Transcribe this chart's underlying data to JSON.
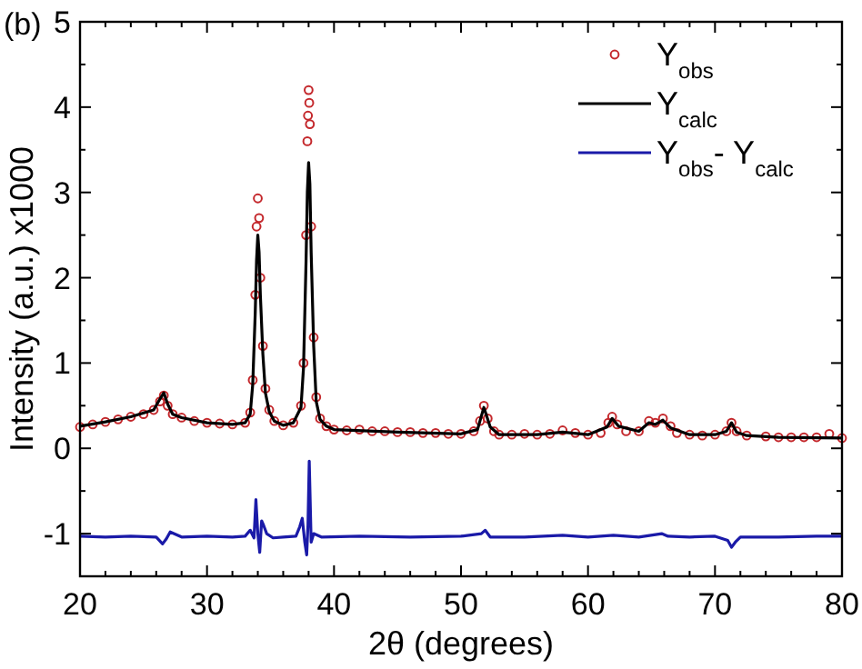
{
  "chart_data": {
    "type": "scatter",
    "xlabel": "2θ (degrees)",
    "ylabel": "Intensity (a.u.)   x1000",
    "annotations": [
      "(b)"
    ],
    "xlim": [
      20,
      80
    ],
    "ylim": [
      -1.5,
      5
    ],
    "xticks": [
      20,
      {
        "value": 22,
        "label": null
      },
      {
        "value": 24,
        "label": null
      },
      {
        "value": 26,
        "label": null
      },
      {
        "value": 28,
        "label": null
      },
      30,
      {
        "value": 32,
        "label": null
      },
      {
        "value": 34,
        "label": null
      },
      {
        "value": 36,
        "label": null
      },
      {
        "value": 38,
        "label": null
      },
      40,
      {
        "value": 42,
        "label": null
      },
      {
        "value": 44,
        "label": null
      },
      {
        "value": 46,
        "label": null
      },
      {
        "value": 48,
        "label": null
      },
      50,
      {
        "value": 52,
        "label": null
      },
      {
        "value": 54,
        "label": null
      },
      {
        "value": 56,
        "label": null
      },
      {
        "value": 58,
        "label": null
      },
      60,
      {
        "value": 62,
        "label": null
      },
      {
        "value": 64,
        "label": null
      },
      {
        "value": 66,
        "label": null
      },
      {
        "value": 68,
        "label": null
      },
      70,
      {
        "value": 72,
        "label": null
      },
      {
        "value": 74,
        "label": null
      },
      {
        "value": 76,
        "label": null
      },
      {
        "value": 78,
        "label": null
      },
      80
    ],
    "yticks": [
      {
        "value": -1.5,
        "label": null
      },
      -1,
      {
        "value": -0.5,
        "label": null
      },
      0,
      {
        "value": 0.5,
        "label": null
      },
      1,
      {
        "value": 1.5,
        "label": null
      },
      2,
      {
        "value": 2.5,
        "label": null
      },
      3,
      {
        "value": 3.5,
        "label": null
      },
      4,
      {
        "value": 4.5,
        "label": null
      },
      5
    ],
    "grid": false,
    "legend": "top right",
    "series": [
      {
        "name": "Y$_{obs}$",
        "marker": "circle",
        "color": "#c4282c",
        "x": [
          20,
          21,
          22,
          23,
          24,
          25,
          25.8,
          26.3,
          26.6,
          26.9,
          27.3,
          28,
          29,
          30,
          31,
          32,
          33,
          33.4,
          33.6,
          33.8,
          33.9,
          34,
          34.1,
          34.2,
          34.4,
          34.6,
          34.9,
          35.3,
          36,
          36.8,
          37.4,
          37.6,
          37.8,
          37.9,
          37.95,
          38,
          38.05,
          38.1,
          38.2,
          38.4,
          38.6,
          38.9,
          39.4,
          40,
          41,
          42,
          43,
          44,
          45,
          46,
          47,
          48,
          49,
          50,
          51,
          51.5,
          51.8,
          52.1,
          52.6,
          53,
          54,
          55,
          56,
          57,
          58,
          59,
          60,
          61,
          61.6,
          61.9,
          62.3,
          63,
          64,
          64.8,
          65.3,
          65.9,
          66.5,
          67,
          68,
          69,
          70,
          70.9,
          71.3,
          71.7,
          72.5,
          74,
          75,
          76,
          77,
          78,
          79,
          80
        ],
        "values": [
          0.25,
          0.28,
          0.31,
          0.34,
          0.37,
          0.4,
          0.45,
          0.55,
          0.62,
          0.5,
          0.4,
          0.36,
          0.32,
          0.3,
          0.29,
          0.28,
          0.3,
          0.42,
          0.8,
          1.8,
          2.6,
          2.93,
          2.7,
          2.0,
          1.2,
          0.7,
          0.45,
          0.32,
          0.27,
          0.3,
          0.5,
          1.0,
          2.5,
          3.6,
          3.9,
          4.2,
          4.05,
          3.8,
          2.6,
          1.3,
          0.6,
          0.35,
          0.26,
          0.22,
          0.21,
          0.22,
          0.2,
          0.2,
          0.19,
          0.19,
          0.18,
          0.18,
          0.17,
          0.17,
          0.2,
          0.32,
          0.5,
          0.35,
          0.2,
          0.16,
          0.16,
          0.17,
          0.16,
          0.17,
          0.21,
          0.18,
          0.16,
          0.18,
          0.3,
          0.37,
          0.28,
          0.2,
          0.2,
          0.32,
          0.3,
          0.35,
          0.26,
          0.18,
          0.16,
          0.15,
          0.16,
          0.2,
          0.3,
          0.2,
          0.15,
          0.14,
          0.13,
          0.13,
          0.13,
          0.13,
          0.17,
          0.12
        ]
      },
      {
        "name": "Y$_{calc}$",
        "type": "line",
        "color": "#000000",
        "x": [
          20,
          22,
          24,
          25.8,
          26.3,
          26.6,
          26.9,
          27.3,
          28,
          30,
          32,
          33,
          33.4,
          33.6,
          33.8,
          33.9,
          34,
          34.1,
          34.2,
          34.4,
          34.6,
          34.9,
          35.3,
          36,
          36.8,
          37.4,
          37.6,
          37.8,
          37.9,
          38,
          38.1,
          38.2,
          38.4,
          38.6,
          38.9,
          39.4,
          40,
          45,
          50,
          51.3,
          51.8,
          52.3,
          53,
          56,
          58,
          60,
          61.5,
          61.9,
          62.4,
          64,
          64.8,
          65.3,
          65.9,
          66.5,
          68,
          70,
          70.9,
          71.3,
          71.7,
          72.5,
          75,
          80
        ],
        "values": [
          0.26,
          0.31,
          0.37,
          0.45,
          0.58,
          0.65,
          0.52,
          0.4,
          0.36,
          0.3,
          0.28,
          0.3,
          0.4,
          0.75,
          1.6,
          2.2,
          2.5,
          2.3,
          1.8,
          1.1,
          0.65,
          0.43,
          0.32,
          0.27,
          0.3,
          0.48,
          0.95,
          2.2,
          3.0,
          3.35,
          3.1,
          2.3,
          1.2,
          0.55,
          0.34,
          0.26,
          0.22,
          0.19,
          0.17,
          0.22,
          0.48,
          0.25,
          0.16,
          0.16,
          0.19,
          0.16,
          0.25,
          0.35,
          0.26,
          0.2,
          0.3,
          0.28,
          0.33,
          0.24,
          0.16,
          0.16,
          0.2,
          0.3,
          0.19,
          0.15,
          0.13,
          0.12
        ]
      },
      {
        "name": "Y$_{obs}$- Y$_{calc}$",
        "type": "line",
        "color": "#1a1aa8",
        "x": [
          20,
          22,
          24,
          26,
          26.5,
          26.8,
          27.1,
          28,
          30,
          32,
          33,
          33.4,
          33.7,
          33.85,
          34,
          34.15,
          34.3,
          34.45,
          34.7,
          35.2,
          36,
          37,
          37.3,
          37.5,
          37.7,
          37.85,
          37.95,
          38.05,
          38.2,
          38.4,
          39,
          42,
          46,
          50,
          51.6,
          51.9,
          52.3,
          55,
          58,
          60,
          62,
          64,
          65.8,
          66.3,
          68,
          70,
          71,
          71.3,
          71.6,
          72,
          75,
          78,
          80
        ],
        "values": [
          -1.03,
          -1.04,
          -1.03,
          -1.04,
          -1.12,
          -1.06,
          -0.98,
          -1.04,
          -1.03,
          -1.04,
          -1.03,
          -0.96,
          -1.05,
          -0.6,
          -1.0,
          -1.22,
          -0.85,
          -0.9,
          -1.0,
          -1.05,
          -1.04,
          -1.03,
          -0.92,
          -0.82,
          -1.1,
          -1.25,
          -0.9,
          -0.15,
          -1.1,
          -1.0,
          -1.04,
          -1.03,
          -1.04,
          -1.03,
          -1.0,
          -0.96,
          -1.04,
          -1.04,
          -1.02,
          -1.04,
          -1.02,
          -1.04,
          -1.0,
          -1.03,
          -1.04,
          -1.03,
          -1.08,
          -1.16,
          -1.1,
          -1.04,
          -1.04,
          -1.03,
          -1.03
        ]
      }
    ]
  }
}
